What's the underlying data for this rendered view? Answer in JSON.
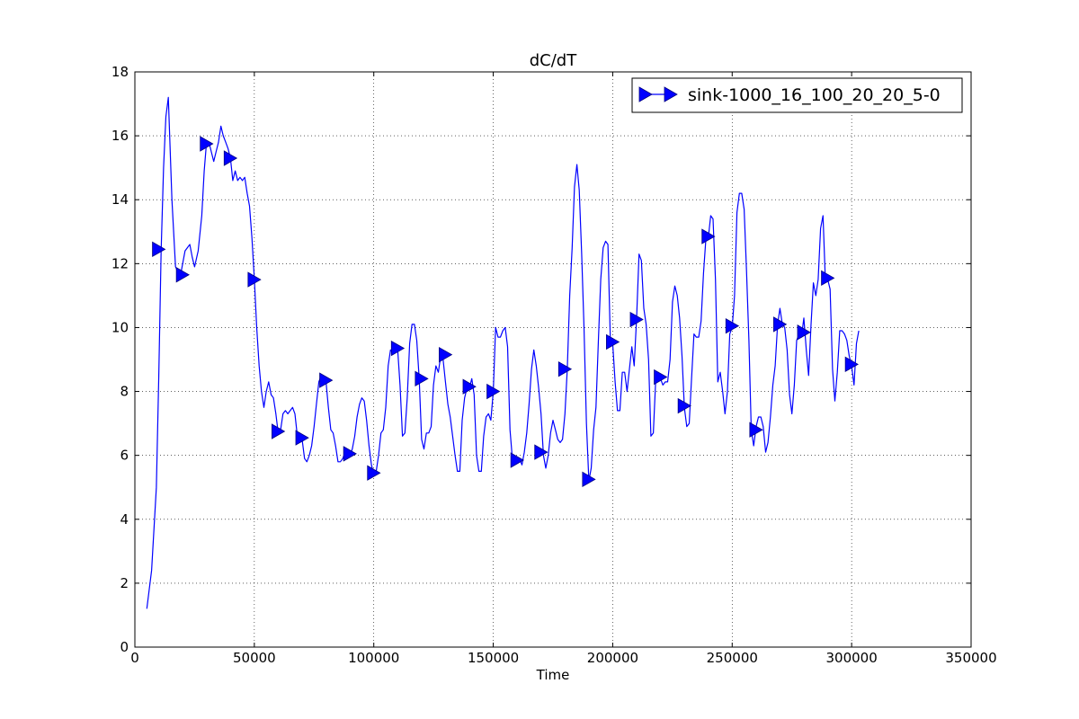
{
  "chart_data": {
    "type": "line",
    "title": "dC/dT",
    "xlabel": "Time",
    "ylabel": "",
    "xlim": [
      0,
      350000
    ],
    "ylim": [
      0,
      18
    ],
    "xticks": [
      0,
      50000,
      100000,
      150000,
      200000,
      250000,
      300000,
      350000
    ],
    "yticks": [
      0,
      2,
      4,
      6,
      8,
      10,
      12,
      14,
      16,
      18
    ],
    "grid": true,
    "legend_position": "top-right",
    "colors": {
      "series": "#0000ff",
      "marker_fill": "#0000ff",
      "marker_edge": "#000080"
    },
    "series": [
      {
        "name": "sink-1000_16_100_20_20_5-0",
        "marker": "triangle-right",
        "x": [
          5000,
          7000,
          9000,
          10000,
          11000,
          12000,
          13000,
          14000,
          15500,
          17000,
          19000,
          21000,
          23000,
          24000,
          25000,
          26500,
          28000,
          29000,
          30000,
          31000,
          32000,
          33000,
          34000,
          35000,
          36000,
          37000,
          38000,
          39000,
          40000,
          41000,
          42000,
          43000,
          44000,
          45000,
          46000,
          47000,
          48000,
          49000,
          50000,
          51000,
          52000,
          53000,
          54000,
          55000,
          56000,
          57000,
          58000,
          59000,
          60000,
          61000,
          62000,
          63000,
          64000,
          65000,
          66000,
          67000,
          68000,
          69000,
          70000,
          71000,
          72000,
          73000,
          74000,
          75000,
          76000,
          77000,
          78000,
          79000,
          80000,
          81000,
          82000,
          83000,
          84000,
          85000,
          86000,
          87000,
          88000,
          89000,
          90000,
          91000,
          92000,
          93000,
          94000,
          95000,
          96000,
          97000,
          98000,
          99000,
          100000,
          101000,
          102000,
          103000,
          104000,
          105000,
          106000,
          107000,
          108000,
          109000,
          110000,
          111000,
          112000,
          113000,
          114000,
          115000,
          116000,
          117000,
          118000,
          119000,
          120000,
          121000,
          122000,
          123000,
          124000,
          125000,
          126000,
          127000,
          128000,
          129000,
          130000,
          131000,
          132000,
          133000,
          134000,
          135000,
          136000,
          137000,
          138000,
          139000,
          140000,
          141000,
          142000,
          143000,
          144000,
          145000,
          146000,
          147000,
          148000,
          149000,
          150000,
          151000,
          152000,
          153000,
          154000,
          155000,
          156000,
          157000,
          158000,
          159000,
          160000,
          161000,
          162000,
          163000,
          164000,
          165000,
          166000,
          167000,
          168000,
          169000,
          170000,
          171000,
          172000,
          173000,
          174000,
          175000,
          176000,
          177000,
          178000,
          179000,
          180000,
          181000,
          182000,
          183000,
          184000,
          185000,
          186000,
          187000,
          188000,
          189000,
          190000,
          191000,
          192000,
          193000,
          194000,
          195000,
          196000,
          197000,
          198000,
          199000,
          200000,
          201000,
          202000,
          203000,
          204000,
          205000,
          206000,
          207000,
          208000,
          209000,
          210000,
          211000,
          212000,
          213000,
          214000,
          215000,
          216000,
          217000,
          218000,
          219000,
          220000,
          221000,
          222000,
          223000,
          224000,
          225000,
          226000,
          227000,
          228000,
          229000,
          230000,
          231000,
          232000,
          233000,
          234000,
          235000,
          236000,
          237000,
          238000,
          239000,
          240000,
          241000,
          242000,
          243000,
          244000,
          245000,
          246000,
          247000,
          248000,
          249000,
          250000,
          251000,
          252000,
          253000,
          254000,
          255000,
          256000,
          257000,
          258000,
          259000,
          260000,
          261000,
          262000,
          263000,
          264000,
          265000,
          266000,
          267000,
          268000,
          269000,
          270000,
          271000,
          272000,
          273000,
          274000,
          275000,
          276000,
          277000,
          278000,
          279000,
          280000,
          281000,
          282000,
          283000,
          284000,
          285000,
          286000,
          287000,
          288000,
          289000,
          290000,
          291000,
          292000,
          293000,
          294000,
          295000,
          296000,
          297000,
          298000,
          299000,
          300000,
          301000,
          302000,
          303000
        ],
        "y": [
          1.2,
          2.4,
          5.0,
          8.5,
          12.4,
          15.0,
          16.6,
          17.2,
          14.0,
          11.9,
          11.6,
          12.4,
          12.6,
          12.2,
          11.9,
          12.4,
          13.5,
          14.9,
          15.8,
          15.8,
          15.5,
          15.2,
          15.5,
          15.8,
          16.3,
          16.0,
          15.8,
          15.6,
          15.3,
          14.6,
          14.9,
          14.6,
          14.7,
          14.6,
          14.7,
          14.2,
          13.8,
          12.8,
          11.5,
          10.0,
          8.8,
          8.0,
          7.5,
          8.0,
          8.3,
          7.9,
          7.8,
          7.3,
          6.7,
          6.8,
          7.3,
          7.4,
          7.3,
          7.4,
          7.5,
          7.3,
          6.6,
          6.7,
          6.5,
          5.9,
          5.8,
          6.0,
          6.3,
          6.9,
          7.6,
          8.3,
          8.5,
          8.2,
          8.3,
          7.5,
          6.8,
          6.7,
          6.3,
          5.8,
          5.8,
          5.9,
          6.1,
          6.0,
          6.0,
          6.2,
          6.6,
          7.2,
          7.6,
          7.8,
          7.7,
          7.1,
          6.3,
          5.7,
          5.4,
          5.5,
          6.0,
          6.7,
          6.8,
          7.5,
          8.8,
          9.3,
          9.2,
          9.4,
          9.3,
          8.2,
          6.6,
          6.7,
          7.8,
          9.5,
          10.1,
          10.1,
          9.6,
          8.4,
          6.5,
          6.2,
          6.7,
          6.7,
          6.9,
          8.2,
          8.8,
          8.6,
          9.1,
          9.0,
          8.3,
          7.6,
          7.2,
          6.6,
          6.0,
          5.5,
          5.5,
          7.1,
          7.8,
          8.1,
          8.1,
          8.4,
          7.9,
          6.0,
          5.5,
          5.5,
          6.6,
          7.2,
          7.3,
          7.1,
          8.0,
          10.0,
          9.7,
          9.7,
          9.9,
          10.0,
          9.4,
          6.8,
          5.9,
          5.9,
          5.8,
          5.9,
          5.7,
          6.1,
          6.7,
          7.6,
          8.7,
          9.3,
          8.8,
          8.1,
          7.3,
          6.0,
          5.6,
          6.0,
          6.7,
          7.1,
          6.8,
          6.5,
          6.4,
          6.5,
          7.3,
          8.7,
          11.0,
          12.5,
          14.4,
          15.1,
          14.3,
          12.3,
          10.0,
          7.0,
          5.2,
          5.6,
          6.8,
          7.5,
          9.6,
          11.5,
          12.5,
          12.7,
          12.6,
          9.6,
          9.5,
          8.3,
          7.4,
          7.4,
          8.6,
          8.6,
          8.0,
          8.7,
          9.4,
          8.8,
          10.3,
          12.3,
          12.1,
          10.6,
          10.1,
          9.0,
          6.6,
          6.7,
          8.4,
          8.6,
          8.4,
          8.2,
          8.3,
          8.3,
          9.0,
          10.8,
          11.3,
          11.0,
          10.3,
          9.1,
          7.5,
          6.9,
          7.0,
          8.4,
          9.8,
          9.7,
          9.7,
          10.2,
          11.7,
          12.8,
          12.8,
          13.5,
          13.4,
          11.5,
          8.3,
          8.6,
          8.0,
          7.3,
          8.0,
          9.8,
          10.0,
          11.0,
          13.6,
          14.2,
          14.2,
          13.7,
          11.8,
          9.6,
          6.8,
          6.3,
          6.9,
          7.2,
          7.2,
          6.9,
          6.1,
          6.4,
          7.2,
          8.2,
          8.8,
          10.1,
          10.6,
          10.1,
          10.0,
          9.3,
          7.9,
          7.3,
          8.2,
          9.6,
          9.8,
          9.7,
          10.3,
          9.3,
          8.5,
          10.1,
          11.4,
          11.0,
          11.5,
          13.1,
          13.5,
          11.5,
          11.5,
          11.2,
          8.7,
          7.7,
          8.6,
          9.9,
          9.9,
          9.8,
          9.6,
          9.1,
          8.8,
          8.2,
          9.5,
          9.9
        ]
      }
    ],
    "marker_x": [
      10000,
      20000,
      30000,
      40000,
      50000,
      60000,
      70000,
      80000,
      90000,
      100000,
      110000,
      120000,
      130000,
      140000,
      150000,
      160000,
      170000,
      180000,
      190000,
      200000,
      210000,
      220000,
      230000,
      240000,
      250000,
      260000,
      270000,
      280000,
      290000,
      300000
    ],
    "marker_y": [
      12.45,
      11.65,
      15.75,
      15.3,
      11.5,
      6.75,
      6.55,
      8.35,
      6.05,
      5.45,
      9.35,
      8.4,
      9.15,
      8.15,
      8.0,
      5.85,
      6.1,
      8.7,
      5.25,
      9.55,
      10.25,
      8.45,
      7.55,
      12.85,
      10.05,
      6.8,
      10.1,
      9.85,
      11.55,
      8.85
    ]
  }
}
